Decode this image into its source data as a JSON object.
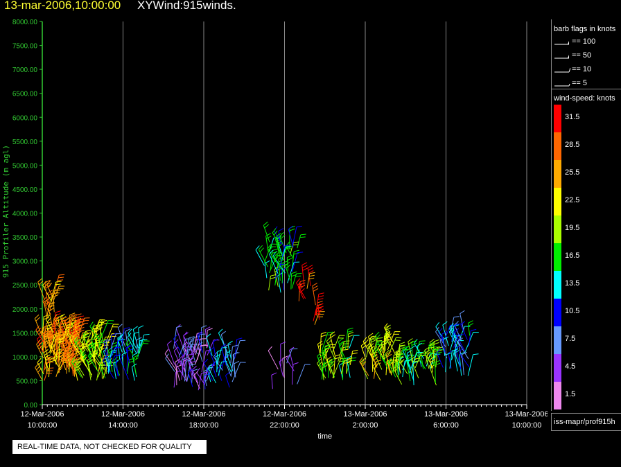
{
  "header": {
    "timestamp": "13-mar-2006,10:00:00",
    "title": "XYWind:915winds."
  },
  "chart_data": {
    "type": "scatter",
    "title": "XYWind:915winds.",
    "xlabel": "time",
    "ylabel": "915 Profiler Altitude (m agl)",
    "x_range": [
      "12-Mar-2006 10:00:00",
      "13-Mar-2006 10:00:00"
    ],
    "ylim": [
      0,
      8000
    ],
    "yticks": [
      "0.00",
      "500.00",
      "1000.00",
      "1500.00",
      "2000.00",
      "2500.00",
      "3000.00",
      "3500.00",
      "4000.00",
      "4500.00",
      "5000.00",
      "5500.00",
      "6000.00",
      "6500.00",
      "7000.00",
      "7500.00",
      "8000.00"
    ],
    "xticks": [
      {
        "date": "12-Mar-2006",
        "time": "10:00:00"
      },
      {
        "date": "12-Mar-2006",
        "time": "14:00:00"
      },
      {
        "date": "12-Mar-2006",
        "time": "18:00:00"
      },
      {
        "date": "12-Mar-2006",
        "time": "22:00:00"
      },
      {
        "date": "13-Mar-2006",
        "time": "2:00:00"
      },
      {
        "date": "13-Mar-2006",
        "time": "6:00:00"
      },
      {
        "date": "13-Mar-2006",
        "time": "10:00:00"
      }
    ],
    "grid": "vertical",
    "clusters": [
      {
        "t": [
          0.0,
          1.9
        ],
        "alt": [
          500,
          1500
        ],
        "speed": 26,
        "n": 120
      },
      {
        "t": [
          0.1,
          0.6
        ],
        "alt": [
          1600,
          2300
        ],
        "speed": 28,
        "n": 14
      },
      {
        "t": [
          1.9,
          3.2
        ],
        "alt": [
          500,
          1400
        ],
        "speed": 20,
        "n": 55
      },
      {
        "t": [
          3.2,
          4.9
        ],
        "alt": [
          500,
          1300
        ],
        "speed": 12,
        "n": 45
      },
      {
        "t": [
          6.5,
          8.2
        ],
        "alt": [
          300,
          1200
        ],
        "speed": 6,
        "n": 60
      },
      {
        "t": [
          8.2,
          9.6
        ],
        "alt": [
          300,
          1100
        ],
        "speed": 10,
        "n": 30
      },
      {
        "t": [
          11.0,
          12.7
        ],
        "alt": [
          2300,
          3400
        ],
        "speed": 14,
        "n": 45
      },
      {
        "t": [
          12.7,
          13.8
        ],
        "alt": [
          1600,
          2500
        ],
        "speed": 28,
        "n": 12
      },
      {
        "t": [
          11.4,
          12.8
        ],
        "alt": [
          200,
          900
        ],
        "speed": 6,
        "n": 10
      },
      {
        "t": [
          13.7,
          15.3
        ],
        "alt": [
          500,
          1200
        ],
        "speed": 19,
        "n": 35
      },
      {
        "t": [
          16.0,
          17.5
        ],
        "alt": [
          500,
          1300
        ],
        "speed": 21,
        "n": 40
      },
      {
        "t": [
          17.5,
          19.7
        ],
        "alt": [
          400,
          1000
        ],
        "speed": 17,
        "n": 45
      },
      {
        "t": [
          19.8,
          21.2
        ],
        "alt": [
          600,
          1500
        ],
        "speed": 11,
        "n": 40
      }
    ]
  },
  "legend": {
    "barb_title": "barb flags in knots",
    "barbs": [
      {
        "label": "== 100",
        "knots": 100
      },
      {
        "label": "== 50",
        "knots": 50
      },
      {
        "label": "== 10",
        "knots": 10
      },
      {
        "label": "== 5",
        "knots": 5
      }
    ],
    "speed_title": "wind-speed: knots",
    "colorbar": [
      {
        "label": "31.5",
        "color": "#ff0000"
      },
      {
        "label": "28.5",
        "color": "#ff6600"
      },
      {
        "label": "25.5",
        "color": "#ffaa00"
      },
      {
        "label": "22.5",
        "color": "#ffff00"
      },
      {
        "label": "19.5",
        "color": "#aaff00"
      },
      {
        "label": "16.5",
        "color": "#00ee00"
      },
      {
        "label": "13.5",
        "color": "#00ffff"
      },
      {
        "label": "10.5",
        "color": "#0000ff"
      },
      {
        "label": "7.5",
        "color": "#6699ff"
      },
      {
        "label": "4.5",
        "color": "#9933ff"
      },
      {
        "label": "1.5",
        "color": "#ee88ee"
      }
    ]
  },
  "source": "iss-mapr/prof915h",
  "qc_note": "REAL-TIME DATA, NOT CHECKED FOR QUALITY",
  "colors": {
    "axis": "#33cc33",
    "grid": "#888888",
    "title_date": "#ffff33"
  }
}
